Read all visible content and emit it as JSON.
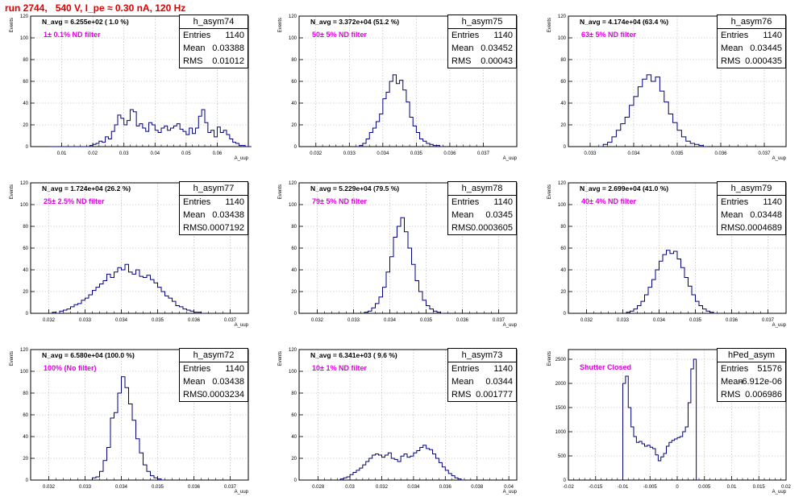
{
  "page_title": "run 2744,   540 V, I_pe ≈ 0.30 nA, 120 Hz",
  "stat_labels": {
    "entries": "Entries",
    "mean": "Mean",
    "rms": "RMS"
  },
  "ylabel": "Events",
  "xlabel": "A_uup",
  "colors": {
    "title": "#e00000",
    "histogram": "#00007f",
    "filter_text": "#e000e0",
    "grid": "#b0b0b0"
  },
  "chart_data": [
    {
      "type": "bar",
      "name": "h_asym74",
      "n_avg": "N_avg = 6.255e+02 ( 1.0 %)",
      "filter": "1± 0.1% ND filter",
      "entries": "1140",
      "mean": "0.03388",
      "rms": "0.01012",
      "xlim": [
        0.0,
        0.07
      ],
      "ylim": [
        0,
        120
      ],
      "xticks": [
        0.01,
        0.02,
        0.03,
        0.04,
        0.05,
        0.06
      ],
      "xtick_labels": [
        "0.01",
        "0.02",
        "0.03",
        "0.04",
        "0.05",
        "0.06"
      ],
      "yticks": [
        0,
        20,
        40,
        60,
        80,
        100,
        120
      ],
      "bins": {
        "start": 0.006,
        "width": 0.001,
        "values": [
          0,
          0,
          0,
          0,
          0,
          0,
          0,
          0,
          0,
          0,
          0,
          0,
          0,
          1,
          2,
          3,
          5,
          4,
          9,
          7,
          14,
          20,
          29,
          26,
          20,
          24,
          34,
          32,
          19,
          21,
          17,
          14,
          22,
          20,
          15,
          13,
          17,
          19,
          15,
          17,
          19,
          21,
          16,
          14,
          11,
          17,
          12,
          17,
          28,
          34,
          22,
          13,
          15,
          9,
          18,
          13,
          15,
          11,
          7,
          4,
          3,
          1,
          1,
          0,
          0
        ]
      }
    },
    {
      "type": "bar",
      "name": "h_asym75",
      "n_avg": "N_avg = 3.372e+04 (51.2 %)",
      "filter": "50± 5% ND filter",
      "entries": "1140",
      "mean": "0.03452",
      "rms": "0.00043",
      "xlim": [
        0.0315,
        0.038
      ],
      "ylim": [
        0,
        120
      ],
      "xticks": [
        0.032,
        0.033,
        0.034,
        0.035,
        0.036,
        0.037
      ],
      "xtick_labels": [
        "0.032",
        "0.033",
        "0.034",
        "0.035",
        "0.036",
        "0.037"
      ],
      "yticks": [
        0,
        20,
        40,
        60,
        80,
        100,
        120
      ],
      "bins": {
        "start": 0.0332,
        "width": 0.0001,
        "values": [
          0,
          1,
          3,
          7,
          13,
          17,
          23,
          30,
          44,
          50,
          60,
          66,
          58,
          61,
          52,
          41,
          27,
          19,
          13,
          7,
          5,
          3,
          2,
          1,
          1,
          0
        ]
      }
    },
    {
      "type": "bar",
      "name": "h_asym76",
      "n_avg": "N_avg = 4.174e+04 (63.4 %)",
      "filter": "63± 5% ND filter",
      "entries": "1140",
      "mean": "0.03445",
      "rms": "0.000435",
      "xlim": [
        0.0325,
        0.0375
      ],
      "ylim": [
        0,
        120
      ],
      "xticks": [
        0.033,
        0.034,
        0.035,
        0.036,
        0.037
      ],
      "xtick_labels": [
        "0.033",
        "0.034",
        "0.035",
        "0.036",
        "0.037"
      ],
      "yticks": [
        0,
        20,
        40,
        60,
        80,
        100,
        120
      ],
      "bins": {
        "start": 0.0332,
        "width": 0.0001,
        "values": [
          0,
          2,
          4,
          9,
          15,
          21,
          27,
          38,
          46,
          55,
          62,
          66,
          60,
          64,
          51,
          41,
          30,
          22,
          15,
          9,
          5,
          3,
          2,
          1,
          0
        ]
      }
    },
    {
      "type": "bar",
      "name": "h_asym77",
      "n_avg": "N_avg = 1.724e+04 (26.2 %)",
      "filter": "25± 2.5% ND filter",
      "entries": "1140",
      "mean": "0.03438",
      "rms": "0.0007192",
      "xlim": [
        0.0315,
        0.0375
      ],
      "ylim": [
        0,
        120
      ],
      "xticks": [
        0.032,
        0.033,
        0.034,
        0.035,
        0.036,
        0.037
      ],
      "xtick_labels": [
        "0.032",
        "0.033",
        "0.034",
        "0.035",
        "0.036",
        "0.037"
      ],
      "yticks": [
        0,
        20,
        40,
        60,
        80,
        100,
        120
      ],
      "bins": {
        "start": 0.0321,
        "width": 0.0001,
        "values": [
          1,
          0,
          2,
          3,
          4,
          6,
          8,
          9,
          12,
          14,
          17,
          21,
          24,
          27,
          30,
          36,
          33,
          38,
          42,
          40,
          45,
          38,
          36,
          40,
          34,
          33,
          35,
          31,
          28,
          24,
          20,
          16,
          14,
          11,
          7,
          6,
          4,
          3,
          2,
          1,
          1,
          0
        ]
      }
    },
    {
      "type": "bar",
      "name": "h_asym78",
      "n_avg": "N_avg = 5.229e+04 (79.5 %)",
      "filter": "79± 5% ND filter",
      "entries": "1140",
      "mean": "0.0345",
      "rms": "0.0003605",
      "xlim": [
        0.0315,
        0.0375
      ],
      "ylim": [
        0,
        120
      ],
      "xticks": [
        0.032,
        0.033,
        0.034,
        0.035,
        0.036,
        0.037
      ],
      "xtick_labels": [
        "0.032",
        "0.033",
        "0.034",
        "0.035",
        "0.036",
        "0.037"
      ],
      "yticks": [
        0,
        20,
        40,
        60,
        80,
        100,
        120
      ],
      "bins": {
        "start": 0.0333,
        "width": 0.0001,
        "values": [
          1,
          2,
          5,
          9,
          15,
          24,
          38,
          52,
          70,
          80,
          88,
          75,
          60,
          45,
          30,
          20,
          12,
          7,
          4,
          2,
          1,
          0
        ]
      }
    },
    {
      "type": "bar",
      "name": "h_asym79",
      "n_avg": "N_avg = 2.699e+04 (41.0 %)",
      "filter": "40± 4% ND filter",
      "entries": "1140",
      "mean": "0.03448",
      "rms": "0.0004689",
      "xlim": [
        0.0315,
        0.0375
      ],
      "ylim": [
        0,
        120
      ],
      "xticks": [
        0.032,
        0.033,
        0.034,
        0.035,
        0.036,
        0.037
      ],
      "xtick_labels": [
        "0.032",
        "0.033",
        "0.034",
        "0.035",
        "0.036",
        "0.037"
      ],
      "yticks": [
        0,
        20,
        40,
        60,
        80,
        100,
        120
      ],
      "bins": {
        "start": 0.0331,
        "width": 0.0001,
        "values": [
          1,
          2,
          4,
          7,
          11,
          17,
          24,
          31,
          40,
          48,
          54,
          58,
          55,
          57,
          50,
          42,
          33,
          25,
          17,
          11,
          7,
          4,
          2,
          1,
          0
        ]
      }
    },
    {
      "type": "bar",
      "name": "h_asym72",
      "n_avg": "N_avg = 6.580e+04 (100.0 %)",
      "filter": "100% (No filter)",
      "entries": "1140",
      "mean": "0.03438",
      "rms": "0.0003234",
      "xlim": [
        0.0315,
        0.0375
      ],
      "ylim": [
        0,
        120
      ],
      "xticks": [
        0.032,
        0.033,
        0.034,
        0.035,
        0.036,
        0.037
      ],
      "xtick_labels": [
        "0.032",
        "0.033",
        "0.034",
        "0.035",
        "0.036",
        "0.037"
      ],
      "yticks": [
        0,
        20,
        40,
        60,
        80,
        100,
        120
      ],
      "bins": {
        "start": 0.0332,
        "width": 0.0001,
        "values": [
          2,
          3,
          8,
          18,
          30,
          57,
          62,
          80,
          95,
          85,
          70,
          55,
          38,
          25,
          14,
          8,
          4,
          2,
          1,
          0
        ]
      }
    },
    {
      "type": "bar",
      "name": "h_asym73",
      "n_avg": "N_avg = 6.341e+03 ( 9.6 %)",
      "filter": "10± 1% ND filter",
      "entries": "1140",
      "mean": "0.0344",
      "rms": "0.001777",
      "xlim": [
        0.0268,
        0.0405
      ],
      "ylim": [
        0,
        120
      ],
      "xticks": [
        0.028,
        0.03,
        0.032,
        0.034,
        0.036,
        0.038,
        0.04
      ],
      "xtick_labels": [
        "0.028",
        "0.03",
        "0.032",
        "0.034",
        "0.036",
        "0.038",
        "0.04"
      ],
      "yticks": [
        0,
        20,
        40,
        60,
        80,
        100,
        120
      ],
      "bins": {
        "start": 0.0294,
        "width": 0.0002,
        "values": [
          1,
          2,
          3,
          5,
          7,
          9,
          11,
          14,
          17,
          20,
          23,
          24,
          23,
          21,
          23,
          25,
          20,
          19,
          17,
          22,
          24,
          21,
          22,
          25,
          27,
          30,
          32,
          29,
          28,
          24,
          20,
          16,
          12,
          9,
          6,
          4,
          2,
          1,
          0
        ]
      }
    },
    {
      "type": "bar",
      "name": "hPed_asym",
      "filter": "Shutter Closed",
      "entries": "51576",
      "mean": "-6.912e-06",
      "rms": "0.006986",
      "xlim": [
        -0.02,
        0.02
      ],
      "ylim": [
        0,
        2700
      ],
      "xticks": [
        -0.02,
        -0.015,
        -0.01,
        -0.005,
        0,
        0.005,
        0.01,
        0.015,
        0.02
      ],
      "xtick_labels": [
        "-0.02",
        "-0.015",
        "-0.01",
        "-0.005",
        "0",
        "0.005",
        "0.01",
        "0.015",
        "0.02"
      ],
      "yticks": [
        0,
        500,
        1000,
        1500,
        2000,
        2500
      ],
      "bins": {
        "start": -0.0105,
        "width": 0.0005,
        "values": [
          0,
          2000,
          2150,
          1500,
          1100,
          900,
          780,
          800,
          750,
          700,
          720,
          680,
          650,
          520,
          400,
          480,
          550,
          700,
          780,
          820,
          850,
          880,
          900,
          1000,
          1100,
          1600,
          2300,
          2500,
          0
        ]
      }
    }
  ]
}
